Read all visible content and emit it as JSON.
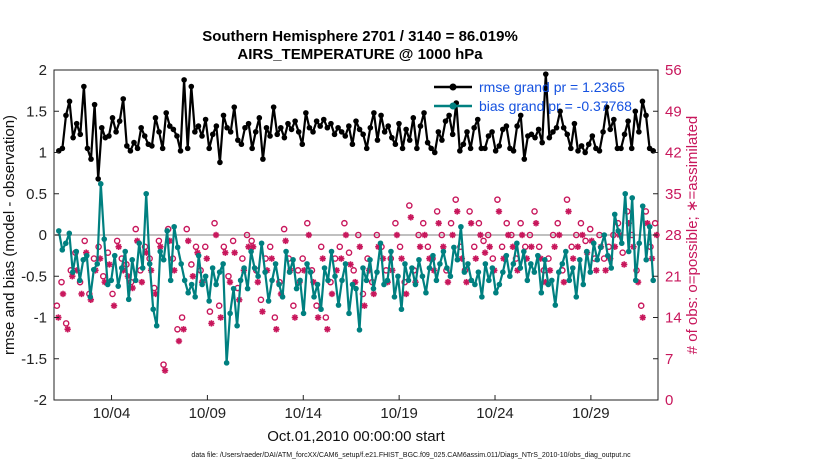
{
  "chart_data": {
    "type": "line",
    "title": "Southern Hemisphere 2701 / 3140 = 86.019%",
    "subtitle": "AIRS_TEMPERATURE @ 1000 hPa",
    "xlabel": "Oct.01,2010 00:00:00 start",
    "ylabel": "rmse and bias (model - observation)",
    "ylabel_right": "# of obs: o=possible; ∗=assimilated",
    "ylim": [
      -2,
      2
    ],
    "ylim_right": [
      0,
      56
    ],
    "xlim": [
      1,
      32.5
    ],
    "yticks": [
      -2,
      -1.5,
      -1,
      -0.5,
      0,
      0.5,
      1,
      1.5,
      2
    ],
    "ytick_labels": [
      "-2",
      "-1.5",
      "-1",
      "-0.5",
      "0",
      "0.5",
      "1",
      "1.5",
      "2"
    ],
    "yticks_right": [
      0,
      7,
      14,
      21,
      28,
      35,
      42,
      49,
      56
    ],
    "ytick_labels_right": [
      "0",
      "7",
      "14",
      "21",
      "28",
      "35",
      "42",
      "49",
      "56"
    ],
    "xticks": [
      4,
      9,
      14,
      19,
      24,
      29
    ],
    "xtick_labels": [
      "10/04",
      "10/09",
      "10/14",
      "10/19",
      "10/24",
      "10/29"
    ],
    "legend": [
      "rmse grand pr = 1.2365",
      "bias grand pr = -0.37768"
    ],
    "legend_position": "top-right",
    "footer": "data file: /Users/raeder/DAI/ATM_forcXX/CAM6_setup/f.e21.FHIST_BGC.f09_025.CAM6assim.011/Diags_NTrS_2010-10/obs_diag_output.nc",
    "colors": {
      "rmse": "#000000",
      "bias": "#008080",
      "obs": "#c8175c",
      "zero": "#c0c0c0",
      "legend_text": "#1552e0"
    },
    "rmse_values": [
      1.02,
      1.05,
      1.45,
      1.62,
      1.18,
      1.35,
      1.22,
      1.8,
      1.05,
      0.92,
      1.58,
      0.68,
      1.3,
      1.18,
      1.2,
      1.42,
      1.25,
      1.38,
      1.65,
      1.08,
      1.02,
      1.12,
      1.05,
      1.3,
      1.2,
      1.1,
      1.08,
      1.42,
      1.25,
      1.05,
      1.48,
      1.32,
      1.28,
      1.2,
      1.02,
      1.88,
      1.05,
      1.8,
      1.25,
      1.32,
      1.2,
      1.4,
      1.05,
      1.22,
      1.32,
      0.88,
      1.45,
      1.3,
      1.25,
      1.55,
      1.15,
      1.1,
      1.3,
      1.35,
      1.05,
      1.25,
      1.42,
      0.92,
      1.3,
      1.2,
      1.55,
      1.22,
      1.3,
      1.18,
      1.35,
      1.28,
      1.38,
      1.25,
      1.1,
      1.48,
      1.3,
      1.25,
      1.38,
      1.32,
      1.4,
      1.3,
      1.35,
      1.22,
      1.3,
      1.25,
      1.2,
      1.32,
      1.1,
      1.38,
      1.28,
      1.22,
      1.05,
      1.3,
      1.48,
      1.15,
      1.45,
      1.25,
      1.32,
      1.18,
      1.1,
      1.35,
      1.05,
      1.28,
      1.15,
      1.42,
      1.05,
      1.32,
      1.48,
      1.12,
      1.05,
      1.0,
      1.25,
      1.15,
      1.38,
      1.45,
      1.22,
      1.6,
      1.02,
      1.1,
      1.25,
      1.05,
      1.3,
      1.4,
      1.05,
      1.05,
      1.2,
      1.25,
      1.02,
      1.08,
      1.28,
      1.32,
      1.05,
      1.02,
      1.32,
      1.45,
      0.92,
      1.2,
      1.22,
      1.18,
      1.28,
      1.12,
      1.95,
      1.18,
      1.25,
      1.3,
      1.5,
      1.3,
      1.22,
      1.05,
      1.35,
      1.02,
      1.08,
      1.0,
      1.1,
      1.2,
      1.05,
      1.02,
      1.25,
      1.55,
      1.28,
      1.4,
      1.05,
      1.05,
      1.22,
      1.38,
      1.05,
      1.5,
      1.25,
      1.62,
      1.45,
      1.05,
      1.02
    ],
    "bias_values": [
      0.05,
      -0.18,
      -0.1,
      0.02,
      -0.45,
      -0.2,
      -0.55,
      -0.3,
      -0.25,
      -0.75,
      -0.42,
      -0.35,
      0.62,
      -0.05,
      -0.6,
      -0.55,
      -0.25,
      -0.62,
      -0.4,
      -0.2,
      -0.78,
      -0.3,
      -0.55,
      -0.1,
      -0.4,
      0.5,
      -0.35,
      -0.9,
      -1.1,
      -0.2,
      -0.3,
      0.05,
      -0.55,
      0.1,
      -0.15,
      -0.35,
      -0.55,
      -0.7,
      -0.6,
      -0.75,
      -0.25,
      -0.6,
      -0.5,
      -0.8,
      -0.4,
      -0.6,
      -0.45,
      -0.35,
      -1.55,
      -0.95,
      -0.65,
      -1.1,
      -0.55,
      -0.4,
      -0.65,
      -0.2,
      -0.4,
      -0.5,
      -0.1,
      -0.45,
      -0.8,
      -0.55,
      -0.35,
      -0.6,
      -0.75,
      -0.2,
      -0.45,
      -0.3,
      -0.65,
      -0.55,
      -0.95,
      -0.35,
      -0.45,
      -0.75,
      -0.6,
      -0.9,
      -0.4,
      -0.55,
      -0.2,
      -0.5,
      -0.85,
      -0.55,
      -0.35,
      -0.95,
      -0.6,
      -0.65,
      -1.15,
      -0.4,
      -0.55,
      -0.3,
      -0.65,
      -0.45,
      -0.1,
      -0.6,
      -0.55,
      -0.2,
      -0.75,
      -0.5,
      -0.9,
      -0.35,
      -0.55,
      -0.4,
      -0.6,
      -0.3,
      -0.5,
      -0.7,
      -0.4,
      -0.25,
      -0.55,
      -0.35,
      -0.2,
      -0.4,
      -0.5,
      -0.15,
      -0.3,
      0.1,
      -0.45,
      -0.35,
      -0.55,
      -0.6,
      -0.45,
      -0.75,
      -0.35,
      -0.55,
      -0.4,
      -0.7,
      -0.6,
      -0.45,
      -0.25,
      -0.5,
      -0.35,
      -0.1,
      -0.4,
      -0.2,
      -0.55,
      -0.35,
      -0.45,
      -0.25,
      -0.7,
      -0.3,
      -0.6,
      -0.55,
      -0.85,
      -0.45,
      -0.35,
      -0.2,
      -0.55,
      -0.4,
      -0.75,
      -0.3,
      -0.6,
      -0.2,
      -0.45,
      -0.1,
      -0.3,
      -0.15,
      0.0,
      -0.25,
      -0.4,
      0.25,
      0.05,
      -0.1,
      0.5,
      -0.2,
      0.45,
      -0.55,
      -0.1,
      0.35,
      -0.3,
      0.1,
      -0.55
    ],
    "possible_counts": [
      16,
      20,
      13,
      22,
      25,
      20,
      27,
      18,
      24,
      26,
      21,
      25,
      18,
      27,
      24,
      23,
      20,
      29,
      22,
      26,
      24,
      19,
      27,
      6,
      29,
      24,
      12,
      14,
      29,
      23,
      26,
      22,
      26,
      15,
      30,
      16,
      26,
      21,
      27,
      19,
      24,
      28,
      27,
      22,
      17,
      24,
      26,
      14,
      20,
      29,
      24,
      16,
      22,
      24,
      30,
      22,
      16,
      26,
      14,
      20,
      24,
      26,
      30,
      25,
      22,
      28,
      18,
      24,
      20,
      28,
      26,
      22,
      24,
      30,
      26,
      20,
      33,
      22,
      28,
      30,
      26,
      24,
      32,
      28,
      22,
      30,
      34,
      26,
      22,
      32,
      26,
      30,
      27,
      28,
      24,
      34,
      26,
      30,
      28,
      24,
      30,
      26,
      28,
      32,
      26,
      22,
      24,
      28,
      30,
      22,
      34,
      26,
      28,
      30,
      27,
      29,
      24,
      28,
      24,
      26,
      28,
      30,
      25,
      32,
      28,
      22,
      16,
      32,
      26,
      30
    ],
    "assimilated_counts": [
      14,
      18,
      12,
      21,
      22,
      18,
      25,
      17,
      22,
      24,
      20,
      23,
      16,
      26,
      22,
      21,
      19,
      27,
      20,
      25,
      22,
      18,
      26,
      5,
      27,
      22,
      10,
      12,
      27,
      21,
      25,
      20,
      24,
      13,
      28,
      14,
      25,
      20,
      25,
      17,
      22,
      26,
      26,
      20,
      15,
      22,
      24,
      12,
      18,
      27,
      22,
      14,
      20,
      22,
      28,
      20,
      14,
      24,
      12,
      18,
      22,
      24,
      28,
      23,
      20,
      26,
      16,
      22,
      18,
      26,
      24,
      20,
      22,
      28,
      24,
      18,
      31,
      20,
      26,
      28,
      24,
      22,
      30,
      26,
      20,
      28,
      32,
      24,
      20,
      30,
      24,
      28,
      25,
      26,
      22,
      32,
      24,
      28,
      26,
      22,
      28,
      24,
      26,
      30,
      24,
      20,
      22,
      26,
      28,
      20,
      32,
      24,
      26,
      28,
      25,
      27,
      22,
      26,
      22,
      24,
      26,
      28,
      23,
      30,
      26,
      20,
      14,
      30,
      24,
      28
    ]
  }
}
